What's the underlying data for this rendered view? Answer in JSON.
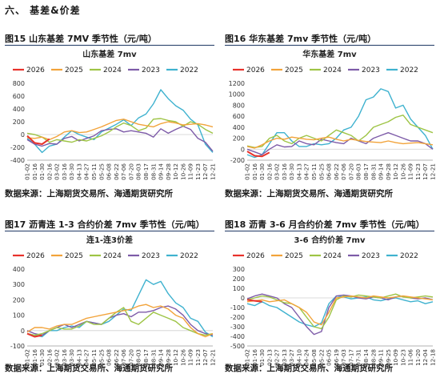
{
  "section": {
    "title": "六、  基差&价差"
  },
  "colors": {
    "2026": "#e8322b",
    "2025": "#f2a33a",
    "2024": "#9ec445",
    "2023": "#7d5ba8",
    "2022": "#3fb2cf"
  },
  "figures": [
    {
      "caption": "图15  山东基差 7MV 季节性（元/吨）",
      "source": "数据来源：上海期货交易所、海通期货研究所",
      "chart_data": {
        "type": "line",
        "title": "山东基差  7mv",
        "legend": [
          "2026",
          "2025",
          "2024",
          "2023",
          "2022"
        ],
        "legend_position": "top",
        "ylim": [
          -400,
          800
        ],
        "yticks": [
          "-400",
          "-200",
          "0",
          "200",
          "400",
          "600",
          "800"
        ],
        "xticks": [
          "01-02",
          "01-16",
          "01-30",
          "02-16",
          "03-02",
          "03-16",
          "03-30",
          "04-13",
          "04-27",
          "05-11",
          "05-25",
          "06-08",
          "06-22",
          "07-06",
          "07-20",
          "08-03",
          "08-17",
          "08-31",
          "09-14",
          "09-28",
          "10-12",
          "10-26",
          "11-09",
          "11-23",
          "12-07",
          "12-21"
        ],
        "series": [
          {
            "name": "2026",
            "values": [
              -20,
              -130,
              -150,
              -70,
              null,
              null,
              null,
              null,
              null,
              null,
              null,
              null,
              null,
              null,
              null,
              null,
              null,
              null,
              null,
              null,
              null,
              null,
              null,
              null,
              null,
              null
            ]
          },
          {
            "name": "2025",
            "values": [
              -50,
              -60,
              -40,
              -80,
              -30,
              40,
              60,
              30,
              40,
              80,
              120,
              170,
              220,
              240,
              200,
              160,
              140,
              120,
              170,
              200,
              180,
              150,
              160,
              170,
              150,
              120
            ]
          },
          {
            "name": "2024",
            "values": [
              20,
              0,
              -40,
              -120,
              -80,
              -100,
              -120,
              -80,
              -100,
              -60,
              -20,
              40,
              120,
              180,
              140,
              60,
              100,
              240,
              250,
              220,
              200,
              130,
              200,
              160,
              80,
              20
            ]
          },
          {
            "name": "2023",
            "values": [
              -80,
              -150,
              -180,
              -140,
              -150,
              -60,
              -30,
              -100,
              -60,
              -20,
              60,
              80,
              90,
              40,
              60,
              40,
              20,
              -40,
              90,
              20,
              80,
              130,
              80,
              -60,
              -120,
              -260
            ]
          },
          {
            "name": "2022",
            "values": [
              -60,
              -150,
              -280,
              -180,
              -150,
              -40,
              60,
              0,
              -40,
              -80,
              40,
              100,
              160,
              230,
              140,
              260,
              320,
              480,
              700,
              560,
              450,
              380,
              240,
              150,
              -150,
              -280
            ]
          }
        ]
      }
    },
    {
      "caption": "图16  华东基差 7mv 季节性（元/吨）",
      "source": "数据来源：上海期货交易所、海通期货研究所",
      "chart_data": {
        "type": "line",
        "title": "华东基差  7mv",
        "legend": [
          "2026",
          "2025",
          "2024",
          "2023",
          "2022"
        ],
        "legend_position": "top",
        "ylim": [
          -200,
          1200
        ],
        "yticks": [
          "-200",
          "0",
          "200",
          "400",
          "600",
          "800",
          "1000",
          "1200"
        ],
        "xticks": [
          "01-02",
          "01-16",
          "01-30",
          "02-16",
          "03-02",
          "03-16",
          "03-30",
          "04-13",
          "04-27",
          "05-11",
          "05-25",
          "06-08",
          "06-22",
          "07-06",
          "07-20",
          "08-03",
          "08-17",
          "08-31",
          "09-14",
          "09-28",
          "10-12",
          "10-26",
          "11-09",
          "11-23",
          "12-07",
          "12-21"
        ],
        "series": [
          {
            "name": "2026",
            "values": [
              -40,
              -120,
              -130,
              -60,
              null,
              null,
              null,
              null,
              null,
              null,
              null,
              null,
              null,
              null,
              null,
              null,
              null,
              null,
              null,
              null,
              null,
              null,
              null,
              null,
              null,
              null
            ]
          },
          {
            "name": "2025",
            "values": [
              50,
              20,
              80,
              150,
              200,
              180,
              220,
              200,
              180,
              170,
              200,
              220,
              180,
              150,
              180,
              160,
              140,
              130,
              120,
              150,
              120,
              100,
              110,
              120,
              100,
              80
            ]
          },
          {
            "name": "2024",
            "values": [
              60,
              30,
              50,
              200,
              250,
              150,
              100,
              200,
              250,
              200,
              150,
              250,
              350,
              300,
              250,
              150,
              250,
              400,
              450,
              500,
              580,
              620,
              450,
              400,
              350,
              300
            ]
          },
          {
            "name": "2023",
            "values": [
              0,
              -50,
              -100,
              0,
              80,
              40,
              50,
              150,
              100,
              80,
              180,
              150,
              120,
              100,
              200,
              150,
              100,
              200,
              250,
              300,
              250,
              200,
              150,
              150,
              100,
              0
            ]
          },
          {
            "name": "2022",
            "values": [
              -100,
              -150,
              -100,
              100,
              300,
              300,
              150,
              50,
              50,
              100,
              80,
              100,
              200,
              350,
              400,
              600,
              900,
              950,
              1100,
              1050,
              750,
              800,
              550,
              400,
              250,
              0
            ]
          }
        ]
      }
    },
    {
      "caption": "图17  沥青连 1-3 合约价差 7mv  季节性（元/吨）",
      "source": "数据来源：上海期货交易所、海通期货研究所",
      "chart_data": {
        "type": "line",
        "title": "连1-连3价差",
        "legend": [
          "2026",
          "2025",
          "2024",
          "2023",
          "2022"
        ],
        "legend_position": "top",
        "ylim": [
          -100,
          400
        ],
        "yticks": [
          "-100",
          "0",
          "100",
          "200",
          "300",
          "400"
        ],
        "xticks": [
          "01-02",
          "01-16",
          "01-30",
          "02-16",
          "03-02",
          "03-16",
          "03-30",
          "04-13",
          "04-27",
          "05-11",
          "05-25",
          "06-08",
          "06-22",
          "07-06",
          "07-20",
          "08-03",
          "08-17",
          "08-31",
          "09-14",
          "09-28",
          "10-12",
          "10-26",
          "11-09",
          "11-23",
          "12-07",
          "12-21"
        ],
        "series": [
          {
            "name": "2026",
            "values": [
              -20,
              -40,
              -30,
              null,
              null,
              null,
              null,
              null,
              null,
              null,
              null,
              null,
              null,
              null,
              null,
              null,
              null,
              null,
              null,
              null,
              null,
              null,
              null,
              null,
              null,
              null
            ]
          },
          {
            "name": "2025",
            "values": [
              -10,
              20,
              20,
              10,
              30,
              40,
              40,
              60,
              80,
              90,
              100,
              110,
              120,
              130,
              140,
              160,
              170,
              150,
              160,
              140,
              100,
              80,
              20,
              -20,
              -40,
              -20
            ]
          },
          {
            "name": "2024",
            "values": [
              -20,
              -30,
              -20,
              0,
              20,
              10,
              10,
              30,
              60,
              40,
              40,
              80,
              120,
              150,
              60,
              40,
              80,
              120,
              100,
              80,
              60,
              20,
              0,
              -20,
              -30,
              -20
            ]
          },
          {
            "name": "2023",
            "values": [
              0,
              -20,
              -30,
              0,
              20,
              40,
              20,
              40,
              60,
              50,
              40,
              80,
              100,
              110,
              90,
              120,
              120,
              130,
              150,
              160,
              140,
              100,
              40,
              0,
              -20,
              -30
            ]
          },
          {
            "name": "2022",
            "values": [
              -20,
              -30,
              -40,
              0,
              0,
              20,
              30,
              20,
              60,
              50,
              40,
              60,
              100,
              140,
              130,
              230,
              330,
              300,
              320,
              240,
              180,
              150,
              80,
              60,
              -10,
              -40
            ]
          }
        ]
      }
    },
    {
      "caption": "图18  沥青 3-6 月合约价差 7mv  季节性（元/吨）",
      "source": "数据来源：上海期货交易所、海通期货研究所",
      "chart_data": {
        "type": "line",
        "title": "3-6 合约价差  7mv",
        "legend": [
          "2026",
          "2025",
          "2024",
          "2023",
          "2022"
        ],
        "legend_position": "top",
        "ylim": [
          -500,
          300
        ],
        "yticks": [
          "-500",
          "-400",
          "-300",
          "-200",
          "-100",
          "0",
          "100",
          "200",
          "300"
        ],
        "xticks": [
          "01-02",
          "01-16",
          "01-30",
          "02-13",
          "02-27",
          "03-13",
          "03-27",
          "04-10",
          "04-24",
          "05-08",
          "05-22",
          "06-05",
          "06-19",
          "07-03",
          "07-17",
          "07-31",
          "08-14",
          "08-28",
          "09-11",
          "09-25",
          "10-09",
          "10-23",
          "11-06",
          "11-20",
          "12-04",
          "12-18"
        ],
        "series": [
          {
            "name": "2026",
            "values": [
              -20,
              -30,
              -40,
              null,
              null,
              null,
              null,
              null,
              null,
              null,
              null,
              null,
              null,
              null,
              null,
              null,
              null,
              null,
              null,
              null,
              null,
              null,
              null,
              null,
              null,
              null
            ]
          },
          {
            "name": "2025",
            "values": [
              -40,
              -30,
              -20,
              -40,
              -30,
              -20,
              -60,
              -100,
              -150,
              -250,
              -280,
              -150,
              0,
              10,
              20,
              10,
              0,
              20,
              10,
              0,
              10,
              20,
              10,
              0,
              -10,
              -20
            ]
          },
          {
            "name": "2024",
            "values": [
              -20,
              0,
              20,
              10,
              -20,
              -50,
              -60,
              -100,
              -200,
              -300,
              -320,
              -200,
              -20,
              20,
              10,
              30,
              20,
              10,
              0,
              20,
              40,
              10,
              0,
              10,
              20,
              10
            ]
          },
          {
            "name": "2023",
            "values": [
              -10,
              20,
              40,
              20,
              0,
              -60,
              -100,
              -200,
              -300,
              -380,
              -350,
              -100,
              20,
              30,
              20,
              0,
              -10,
              10,
              0,
              -20,
              10,
              20,
              0,
              -10,
              0,
              -20
            ]
          },
          {
            "name": "2022",
            "values": [
              -60,
              -80,
              -40,
              -80,
              -100,
              -150,
              -200,
              -250,
              -280,
              -300,
              -260,
              -60,
              20,
              10,
              -10,
              0,
              10,
              -20,
              -30,
              -10,
              0,
              -20,
              -40,
              -30,
              -60,
              -40
            ]
          }
        ]
      }
    }
  ]
}
